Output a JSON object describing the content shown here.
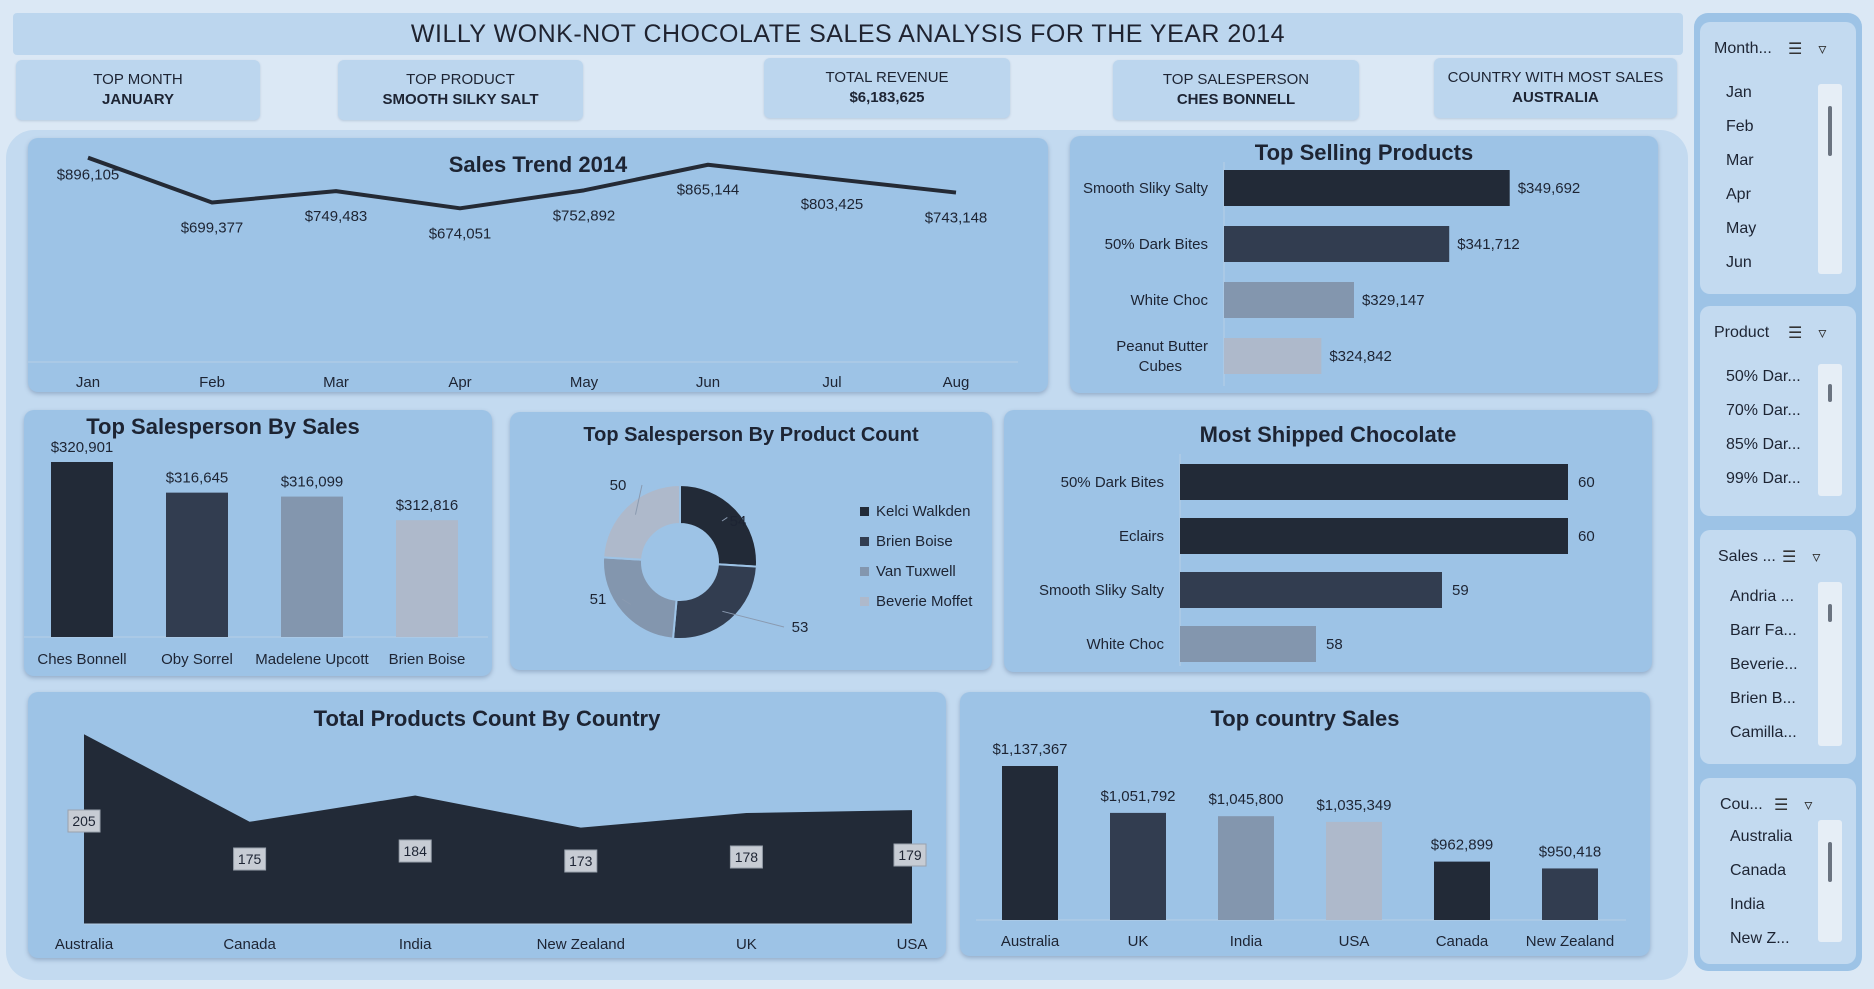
{
  "title": "WILLY WONK-NOT CHOCOLATE SALES ANALYSIS FOR THE YEAR 2014",
  "kpis": [
    {
      "label": "TOP MONTH",
      "value": "JANUARY"
    },
    {
      "label": "TOP PRODUCT",
      "value": "SMOOTH SILKY SALT"
    },
    {
      "label": "TOTAL REVENUE",
      "value": "$6,183,625"
    },
    {
      "label": "TOP SALESPERSON",
      "value": "CHES BONNELL"
    },
    {
      "label": "COUNTRY WITH MOST SALES",
      "value": "AUSTRALIA"
    }
  ],
  "colors": {
    "c1": "#222a37",
    "c2": "#323d50",
    "c3": "#8396ae",
    "c4": "#aeb9cb",
    "card": "#9dc3e6",
    "line": "#242a35"
  },
  "chart_data": [
    {
      "type": "line",
      "title": "Sales Trend 2014",
      "categories": [
        "Jan",
        "Feb",
        "Mar",
        "Apr",
        "May",
        "Jun",
        "Jul",
        "Aug"
      ],
      "values": [
        896105,
        699377,
        749483,
        674051,
        752892,
        865144,
        803425,
        743148
      ],
      "labels": [
        "$896,105",
        "$699,377",
        "$749,483",
        "$674,051",
        "$752,892",
        "$865,144",
        "$803,425",
        "$743,148"
      ],
      "ylim": [
        0,
        1000000
      ]
    },
    {
      "type": "bar",
      "orientation": "horizontal",
      "title": "Top Selling Products",
      "categories": [
        "Smooth Sliky Salty",
        "50% Dark Bites",
        "White Choc",
        "Peanut Butter Cubes"
      ],
      "values": [
        349692,
        341712,
        329147,
        324842
      ],
      "labels": [
        "$349,692",
        "$341,712",
        "$329,147",
        "$324,842"
      ]
    },
    {
      "type": "bar",
      "title": "Top Salesperson By Sales",
      "categories": [
        "Ches Bonnell",
        "Oby Sorrel",
        "Madelene Upcott",
        "Brien Boise"
      ],
      "values": [
        320901,
        316645,
        316099,
        312816
      ],
      "labels": [
        "$320,901",
        "$316,645",
        "$316,099",
        "$312,816"
      ]
    },
    {
      "type": "pie",
      "title": "Top Salesperson By Product Count",
      "categories": [
        "Kelci Walkden",
        "Brien Boise",
        "Van Tuxwell",
        "Beverie Moffet"
      ],
      "values": [
        54,
        53,
        51,
        50
      ]
    },
    {
      "type": "bar",
      "orientation": "horizontal",
      "title": "Most Shipped Chocolate",
      "categories": [
        "50% Dark Bites",
        "Eclairs",
        "Smooth Sliky Salty",
        "White Choc"
      ],
      "values": [
        60,
        60,
        59,
        58
      ]
    },
    {
      "type": "area",
      "title": "Total Products Count By Country",
      "categories": [
        "Australia",
        "Canada",
        "India",
        "New Zealand",
        "UK",
        "USA"
      ],
      "values": [
        205,
        175,
        184,
        173,
        178,
        179
      ]
    },
    {
      "type": "bar",
      "title": "Top country Sales",
      "categories": [
        "Australia",
        "UK",
        "India",
        "USA",
        "Canada",
        "New Zealand"
      ],
      "values": [
        1137367,
        1051792,
        1045800,
        1035349,
        962899,
        950418
      ],
      "labels": [
        "$1,137,367",
        "$1,051,792",
        "$1,045,800",
        "$1,035,349",
        "$962,899",
        "$950,418"
      ]
    }
  ],
  "slicers": [
    {
      "label": "Month...",
      "items": [
        "Jan",
        "Feb",
        "Mar",
        "Apr",
        "May",
        "Jun"
      ]
    },
    {
      "label": "Product",
      "items": [
        "50% Dar...",
        "70% Dar...",
        "85% Dar...",
        "99% Dar..."
      ]
    },
    {
      "label": "Sales ...",
      "items": [
        "Andria ...",
        "Barr Fa...",
        "Beverie...",
        "Brien B...",
        "Camilla..."
      ]
    },
    {
      "label": "Cou...",
      "items": [
        "Australia",
        "Canada",
        "India",
        "New Z..."
      ]
    }
  ],
  "icons": {
    "multiselect": "multi-select-icon",
    "clear_filter": "clear-filter-icon"
  }
}
